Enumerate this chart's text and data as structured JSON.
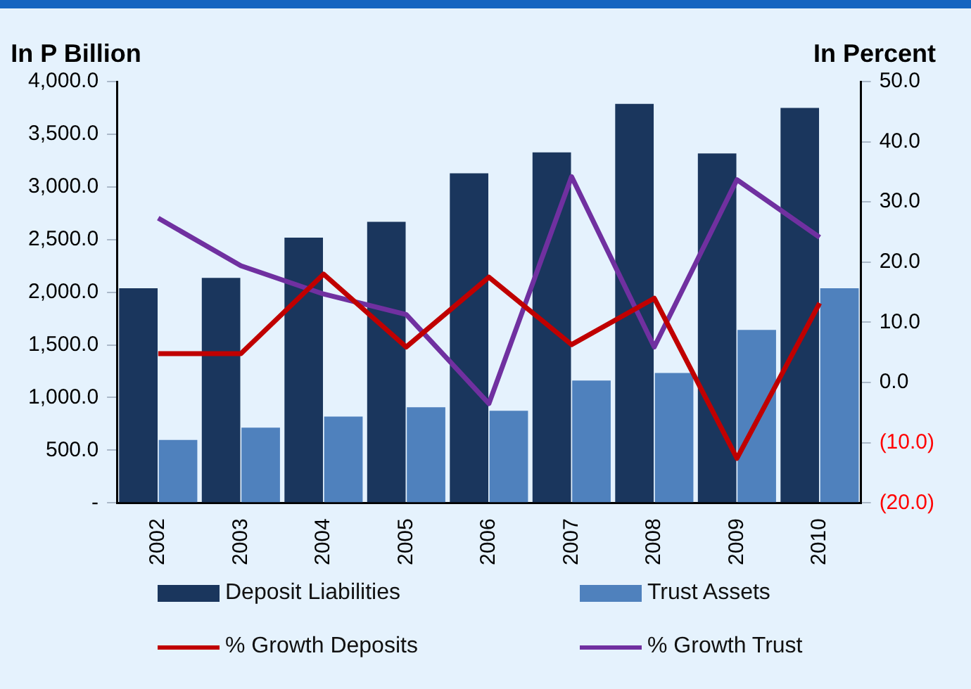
{
  "chart_data": {
    "type": "bar",
    "ylabel": "In P Billion",
    "y2label": "In Percent",
    "categories": [
      "2002",
      "2003",
      "2004",
      "2005",
      "2006",
      "2007",
      "2008",
      "2009",
      "2010"
    ],
    "series": [
      {
        "name": "Deposit Liabilities",
        "color": "#1a365d",
        "values": [
          2037,
          2136,
          2518,
          2668,
          3129,
          3327,
          3788,
          3318,
          3750
        ]
      },
      {
        "name": "Trust Assets",
        "color": "#4f81bd",
        "values": [
          597,
          715,
          819,
          908,
          875,
          1162,
          1233,
          1642,
          2037
        ]
      },
      {
        "name": "% Growth Deposits",
        "type": "line",
        "axis": "y2",
        "color": "#c00000",
        "values": [
          4.8,
          4.8,
          18.0,
          5.9,
          17.5,
          6.3,
          14.0,
          -12.6,
          13.2
        ]
      },
      {
        "name": "% Growth Trust",
        "type": "line",
        "axis": "y2",
        "color": "#7030a0",
        "values": [
          27.3,
          19.4,
          14.7,
          11.3,
          -3.5,
          34.2,
          5.9,
          33.7,
          24.1
        ]
      }
    ],
    "ylim": [
      0,
      4000
    ],
    "yticks": [
      {
        "value": 0,
        "label": "-"
      },
      {
        "value": 500,
        "label": "500.0"
      },
      {
        "value": 1000,
        "label": "1,000.0"
      },
      {
        "value": 1500,
        "label": "1,500.0"
      },
      {
        "value": 2000,
        "label": "2,000.0"
      },
      {
        "value": 2500,
        "label": "2,500.0"
      },
      {
        "value": 3000,
        "label": "3,000.0"
      },
      {
        "value": 3500,
        "label": "3,500.0"
      },
      {
        "value": 4000,
        "label": "4,000.0"
      }
    ],
    "y2lim": [
      -20,
      50
    ],
    "y2ticks": [
      {
        "value": -20,
        "label": "(20.0)"
      },
      {
        "value": -10,
        "label": "(10.0)"
      },
      {
        "value": 0,
        "label": "0.0"
      },
      {
        "value": 10,
        "label": "10.0"
      },
      {
        "value": 20,
        "label": "20.0"
      },
      {
        "value": 30,
        "label": "30.0"
      },
      {
        "value": 40,
        "label": "40.0"
      },
      {
        "value": 50,
        "label": "50.0"
      }
    ],
    "grid": false,
    "legend": "bottom",
    "marker": "none"
  }
}
